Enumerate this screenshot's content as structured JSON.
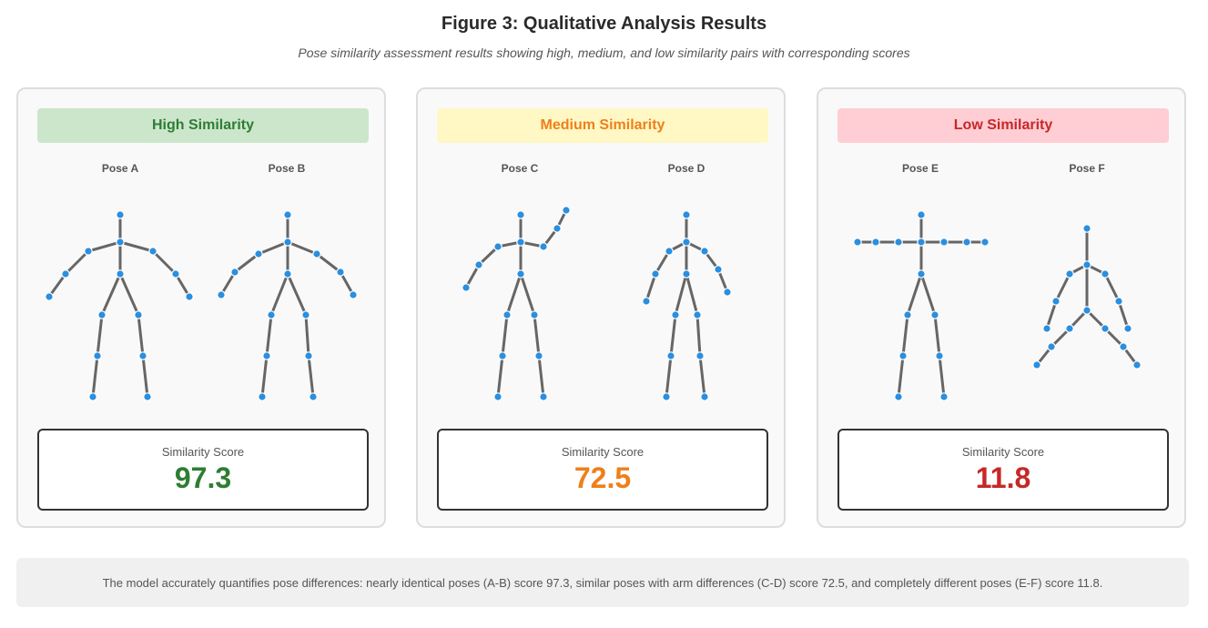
{
  "figure": {
    "title": "Figure 3: Qualitative Analysis Results",
    "subtitle": "Pose similarity assessment results showing high, medium, and low similarity pairs with corresponding scores"
  },
  "colors": {
    "bone": "#666666",
    "joint": "#2a8fe0",
    "high_bg": "#cce6cc",
    "high_text": "#2e7d32",
    "medium_bg": "#fff8c4",
    "medium_text": "#ef7f1a",
    "low_bg": "#ffcdd4",
    "low_text": "#c62828"
  },
  "panels": [
    {
      "header": "High Similarity",
      "poses": [
        "Pose A",
        "Pose B"
      ],
      "score_label": "Similarity Score",
      "score": "97.3"
    },
    {
      "header": "Medium Similarity",
      "poses": [
        "Pose C",
        "Pose D"
      ],
      "score_label": "Similarity Score",
      "score": "72.5"
    },
    {
      "header": "Low Similarity",
      "poses": [
        "Pose E",
        "Pose F"
      ],
      "score_label": "Similarity Score",
      "score": "11.8"
    }
  ],
  "footer": "The model accurately quantifies pose differences: nearly identical poses (A-B) score 97.3, similar poses with arm differences (C-D) score 72.5, and completely different poses (E-F) score 11.8."
}
